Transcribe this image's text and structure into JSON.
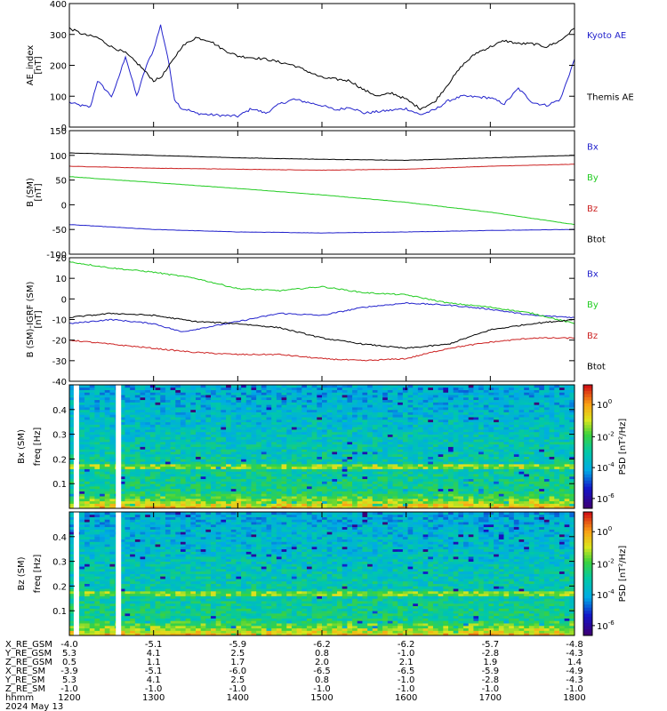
{
  "chart_data": [
    {
      "type": "line",
      "title": "",
      "ylabel": "AE_index",
      "yunit": "[nT]",
      "ylim": [
        0,
        400
      ],
      "yticks": [
        "0",
        "100",
        "200",
        "300",
        "400"
      ],
      "x_time_range": [
        "12:00",
        "18:00"
      ],
      "legend": [
        {
          "name": "Kyoto AE",
          "color": "#2222cc"
        },
        {
          "name": "Themis AE",
          "color": "#000000"
        }
      ],
      "series": [
        {
          "name": "Kyoto AE",
          "color": "#2222cc",
          "x": [
            "12:00",
            "12:08",
            "12:15",
            "12:20",
            "12:30",
            "12:33",
            "12:40",
            "12:48",
            "12:55",
            "13:00",
            "13:05",
            "13:10",
            "13:15",
            "13:20",
            "13:25",
            "13:30",
            "13:40",
            "14:00",
            "14:10",
            "14:20",
            "14:30",
            "14:40",
            "15:00",
            "15:10",
            "15:20",
            "15:30",
            "15:40",
            "16:00",
            "16:10",
            "16:20",
            "16:30",
            "16:40",
            "17:00",
            "17:10",
            "17:20",
            "17:30",
            "17:40",
            "17:50",
            "18:00"
          ],
          "y": [
            80,
            70,
            65,
            150,
            100,
            130,
            230,
            100,
            200,
            250,
            330,
            230,
            90,
            60,
            55,
            45,
            40,
            35,
            60,
            45,
            75,
            90,
            70,
            55,
            65,
            45,
            50,
            60,
            40,
            55,
            85,
            100,
            95,
            75,
            125,
            80,
            70,
            90,
            220
          ]
        },
        {
          "name": "Themis AE",
          "color": "#000000",
          "x": [
            "12:00",
            "12:10",
            "12:20",
            "12:30",
            "12:40",
            "12:50",
            "13:00",
            "13:05",
            "13:10",
            "13:20",
            "13:30",
            "13:40",
            "13:50",
            "14:00",
            "14:20",
            "14:40",
            "15:00",
            "15:20",
            "15:30",
            "15:40",
            "15:50",
            "16:00",
            "16:10",
            "16:20",
            "16:30",
            "16:40",
            "16:50",
            "17:00",
            "17:10",
            "17:20",
            "17:30",
            "17:40",
            "17:50",
            "18:00"
          ],
          "y": [
            320,
            300,
            290,
            260,
            240,
            200,
            150,
            160,
            190,
            260,
            290,
            280,
            250,
            230,
            220,
            200,
            160,
            150,
            120,
            100,
            110,
            90,
            60,
            80,
            140,
            200,
            240,
            260,
            280,
            270,
            270,
            260,
            280,
            320
          ]
        }
      ]
    },
    {
      "type": "line",
      "ylabel": "B (SM)",
      "yunit": "[nT]",
      "ylim": [
        -100,
        150
      ],
      "yticks": [
        "-100",
        "-50",
        "0",
        "50",
        "100",
        "150"
      ],
      "legend": [
        {
          "name": "Bx",
          "color": "#2222cc"
        },
        {
          "name": "By",
          "color": "#22cc22"
        },
        {
          "name": "Bz",
          "color": "#cc2222"
        },
        {
          "name": "Btot",
          "color": "#000000"
        }
      ],
      "series": [
        {
          "name": "Bx",
          "color": "#2222cc",
          "x": [
            "12:00",
            "13:00",
            "14:00",
            "15:00",
            "16:00",
            "17:00",
            "18:00"
          ],
          "y": [
            -40,
            -50,
            -55,
            -57,
            -55,
            -52,
            -50
          ]
        },
        {
          "name": "By",
          "color": "#22cc22",
          "x": [
            "12:00",
            "13:00",
            "14:00",
            "15:00",
            "16:00",
            "17:00",
            "18:00"
          ],
          "y": [
            57,
            45,
            33,
            20,
            5,
            -15,
            -40
          ]
        },
        {
          "name": "Bz",
          "color": "#cc2222",
          "x": [
            "12:00",
            "13:00",
            "14:00",
            "15:00",
            "16:00",
            "17:00",
            "18:00"
          ],
          "y": [
            78,
            74,
            72,
            70,
            72,
            78,
            82
          ]
        },
        {
          "name": "Btot",
          "color": "#000000",
          "x": [
            "12:00",
            "13:00",
            "14:00",
            "15:00",
            "16:00",
            "17:00",
            "18:00"
          ],
          "y": [
            105,
            100,
            95,
            92,
            90,
            95,
            100
          ]
        }
      ]
    },
    {
      "type": "line",
      "ylabel": "B (SM)-IGRF (SM)",
      "yunit": "[nT]",
      "ylim": [
        -40,
        20
      ],
      "yticks": [
        "-40",
        "-30",
        "-20",
        "-10",
        "0",
        "10",
        "20"
      ],
      "legend": [
        {
          "name": "Bx",
          "color": "#2222cc"
        },
        {
          "name": "By",
          "color": "#22cc22"
        },
        {
          "name": "Bz",
          "color": "#cc2222"
        },
        {
          "name": "Btot",
          "color": "#000000"
        }
      ],
      "series": [
        {
          "name": "Bx",
          "color": "#2222cc",
          "x": [
            "12:00",
            "12:30",
            "13:00",
            "13:20",
            "14:00",
            "14:30",
            "15:00",
            "15:30",
            "16:00",
            "16:30",
            "17:00",
            "17:30",
            "18:00"
          ],
          "y": [
            -12,
            -10,
            -12,
            -16,
            -11,
            -7,
            -8,
            -4,
            -2,
            -3,
            -5,
            -8,
            -9
          ]
        },
        {
          "name": "By",
          "color": "#22cc22",
          "x": [
            "12:00",
            "12:30",
            "13:00",
            "13:30",
            "14:00",
            "14:30",
            "15:00",
            "15:30",
            "16:00",
            "16:30",
            "17:00",
            "17:30",
            "18:00"
          ],
          "y": [
            18,
            15,
            13,
            10,
            5,
            4,
            6,
            3,
            2,
            -2,
            -4,
            -7,
            -12
          ]
        },
        {
          "name": "Bz",
          "color": "#cc2222",
          "x": [
            "12:00",
            "12:30",
            "13:00",
            "13:30",
            "14:00",
            "14:30",
            "15:00",
            "15:30",
            "16:00",
            "16:30",
            "17:00",
            "17:30",
            "18:00"
          ],
          "y": [
            -20,
            -22,
            -24,
            -26,
            -27,
            -27,
            -29,
            -30,
            -29,
            -24,
            -21,
            -19,
            -19
          ]
        },
        {
          "name": "Btot",
          "color": "#000000",
          "x": [
            "12:00",
            "12:30",
            "13:00",
            "13:30",
            "14:00",
            "14:30",
            "15:00",
            "15:30",
            "16:00",
            "16:30",
            "17:00",
            "17:30",
            "18:00"
          ],
          "y": [
            -9,
            -7,
            -8,
            -11,
            -12,
            -14,
            -19,
            -22,
            -24,
            -22,
            -15,
            -12,
            -10
          ]
        }
      ]
    },
    {
      "type": "heatmap",
      "ylabel": "Bx (SM)",
      "ylabel2": "freq",
      "yunit": "[Hz]",
      "ylim": [
        0,
        0.5
      ],
      "yticks": [
        "0.1",
        "0.2",
        "0.3",
        "0.4"
      ],
      "colorbar": {
        "label": "PSD [nT^2/Hz]",
        "ticks": [
          "10^0",
          "10^-2",
          "10^-4",
          "10^-6"
        ],
        "scale": "log"
      },
      "data_gaps": [
        "12:05",
        "12:35"
      ]
    },
    {
      "type": "heatmap",
      "ylabel": "Bz (SM)",
      "ylabel2": "freq",
      "yunit": "[Hz]",
      "ylim": [
        0,
        0.5
      ],
      "yticks": [
        "0.1",
        "0.2",
        "0.3",
        "0.4"
      ],
      "colorbar": {
        "label": "PSD [nT^2/Hz]",
        "ticks": [
          "10^0",
          "10^-2",
          "10^-4",
          "10^-6"
        ],
        "scale": "log"
      },
      "data_gaps": [
        "12:05",
        "12:35"
      ]
    }
  ],
  "orbit_table": {
    "rows": [
      {
        "label": "X_RE_GSM",
        "values": [
          "-4.0",
          "-5.1",
          "-5.9",
          "-6.2",
          "-6.2",
          "-5.7",
          "-4.8"
        ]
      },
      {
        "label": "Y_RE_GSM",
        "values": [
          "5.3",
          "4.1",
          "2.5",
          "0.8",
          "-1.0",
          "-2.8",
          "-4.3"
        ]
      },
      {
        "label": "Z_RE_GSM",
        "values": [
          "0.5",
          "1.1",
          "1.7",
          "2.0",
          "2.1",
          "1.9",
          "1.4"
        ]
      },
      {
        "label": "X_RE_SM",
        "values": [
          "-3.9",
          "-5.1",
          "-6.0",
          "-6.5",
          "-6.5",
          "-5.9",
          "-4.9"
        ]
      },
      {
        "label": "Y_RE_SM",
        "values": [
          "5.3",
          "4.1",
          "2.5",
          "0.8",
          "-1.0",
          "-2.8",
          "-4.3"
        ]
      },
      {
        "label": "Z_RE_SM",
        "values": [
          "-1.0",
          "-1.0",
          "-1.0",
          "-1.0",
          "-1.0",
          "-1.0",
          "-1.0"
        ]
      },
      {
        "label": "hhmm",
        "values": [
          "1200",
          "1300",
          "1400",
          "1500",
          "1600",
          "1700",
          "1800"
        ]
      }
    ],
    "date": "2024 May 13"
  }
}
